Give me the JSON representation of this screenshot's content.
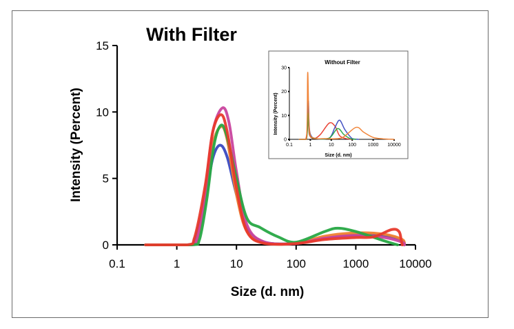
{
  "chart_data": [
    {
      "type": "line",
      "title": "With Filter",
      "xlabel": "Size (d. nm)",
      "ylabel": "Intensity (Percent)",
      "xscale": "log",
      "xlim": [
        0.1,
        10000
      ],
      "ylim": [
        0,
        15
      ],
      "xticks": [
        "0.1",
        "1",
        "10",
        "100",
        "1000",
        "10000"
      ],
      "yticks": [
        "0",
        "5",
        "10",
        "15"
      ],
      "legend": "none",
      "grid": false,
      "series": [
        {
          "color": "#3a49c0",
          "points": [
            [
              0.3,
              0
            ],
            [
              1.5,
              0
            ],
            [
              2,
              0.3
            ],
            [
              3,
              3.5
            ],
            [
              4,
              6.5
            ],
            [
              5.3,
              7.5
            ],
            [
              7,
              6.6
            ],
            [
              10,
              3.8
            ],
            [
              15,
              1.2
            ],
            [
              30,
              0.2
            ],
            [
              100,
              0.1
            ],
            [
              300,
              0.5
            ],
            [
              1000,
              0.75
            ],
            [
              3000,
              0.7
            ],
            [
              6000,
              0.3
            ],
            [
              6500,
              0
            ]
          ]
        },
        {
          "color": "#f08030",
          "points": [
            [
              0.3,
              0
            ],
            [
              1.6,
              0
            ],
            [
              2.2,
              0.4
            ],
            [
              3,
              3.5
            ],
            [
              4,
              7.5
            ],
            [
              5.5,
              8.9
            ],
            [
              7,
              7.9
            ],
            [
              10,
              3.8
            ],
            [
              15,
              1.0
            ],
            [
              30,
              0.15
            ],
            [
              100,
              0.1
            ],
            [
              300,
              0.65
            ],
            [
              1000,
              0.9
            ],
            [
              3000,
              0.8
            ],
            [
              6000,
              0.4
            ],
            [
              6500,
              0
            ]
          ]
        },
        {
          "color": "#c9459e",
          "points": [
            [
              0.3,
              0
            ],
            [
              1.6,
              0
            ],
            [
              2.2,
              0.5
            ],
            [
              3,
              4
            ],
            [
              4,
              8.5
            ],
            [
              5.8,
              10.3
            ],
            [
              7.5,
              9.2
            ],
            [
              10,
              5.5
            ],
            [
              15,
              1.5
            ],
            [
              30,
              0.2
            ],
            [
              100,
              0.1
            ],
            [
              300,
              0.5
            ],
            [
              1000,
              0.7
            ],
            [
              3000,
              0.55
            ],
            [
              6000,
              0.2
            ],
            [
              6500,
              0
            ]
          ]
        },
        {
          "color": "#27a845",
          "points": [
            [
              0.3,
              0
            ],
            [
              1.8,
              0
            ],
            [
              2.4,
              0.4
            ],
            [
              3.2,
              3.5
            ],
            [
              4.2,
              7.5
            ],
            [
              5.5,
              9.0
            ],
            [
              7,
              8.1
            ],
            [
              10,
              5.0
            ],
            [
              15,
              2.0
            ],
            [
              25,
              1.3
            ],
            [
              50,
              0.6
            ],
            [
              100,
              0.2
            ],
            [
              300,
              1.0
            ],
            [
              500,
              1.25
            ],
            [
              1000,
              1.0
            ],
            [
              3000,
              0.3
            ],
            [
              5000,
              0
            ]
          ]
        },
        {
          "color": "#e83a2c",
          "points": [
            [
              0.3,
              0
            ],
            [
              1.5,
              0
            ],
            [
              2,
              0.6
            ],
            [
              3,
              4.5
            ],
            [
              4,
              8.5
            ],
            [
              5.5,
              9.8
            ],
            [
              7,
              8.5
            ],
            [
              10,
              4.3
            ],
            [
              15,
              1.0
            ],
            [
              30,
              0.1
            ],
            [
              100,
              0.1
            ],
            [
              300,
              0.4
            ],
            [
              1000,
              0.55
            ],
            [
              2000,
              0.6
            ],
            [
              4000,
              1.15
            ],
            [
              5300,
              1.0
            ],
            [
              5800,
              0.3
            ],
            [
              6000,
              0
            ]
          ]
        }
      ]
    },
    {
      "type": "line",
      "title": "Without Filter",
      "xlabel": "Size (d. nm)",
      "ylabel": "Intensity (Percent)",
      "xscale": "log",
      "xlim": [
        0.1,
        10000
      ],
      "ylim": [
        0,
        30
      ],
      "xticks": [
        "0.1",
        "1",
        "10",
        "100",
        "1000",
        "10000"
      ],
      "yticks": [
        "0",
        "10",
        "20",
        "30"
      ],
      "legend": "none",
      "grid": false,
      "series": [
        {
          "color": "#e83a2c",
          "points": [
            [
              0.3,
              0
            ],
            [
              0.6,
              0
            ],
            [
              0.8,
              8
            ],
            [
              0.9,
              2
            ],
            [
              1.5,
              0.3
            ],
            [
              3,
              2
            ],
            [
              8,
              6.8
            ],
            [
              15,
              5.5
            ],
            [
              25,
              1.5
            ],
            [
              50,
              0.3
            ],
            [
              100,
              0
            ]
          ]
        },
        {
          "color": "#3a49c0",
          "points": [
            [
              0.3,
              0
            ],
            [
              0.65,
              0
            ],
            [
              0.8,
              16
            ],
            [
              0.95,
              3
            ],
            [
              2,
              0.2
            ],
            [
              8,
              0.5
            ],
            [
              15,
              5
            ],
            [
              25,
              8
            ],
            [
              45,
              4
            ],
            [
              100,
              0.3
            ],
            [
              200,
              0
            ]
          ]
        },
        {
          "color": "#27a845",
          "points": [
            [
              0.3,
              0
            ],
            [
              0.65,
              0
            ],
            [
              0.8,
              11
            ],
            [
              0.95,
              2
            ],
            [
              2,
              0.3
            ],
            [
              8,
              0.5
            ],
            [
              20,
              4.5
            ],
            [
              40,
              2
            ],
            [
              80,
              0.3
            ],
            [
              150,
              0
            ]
          ]
        },
        {
          "color": "#f08030",
          "points": [
            [
              0.3,
              0
            ],
            [
              0.65,
              0
            ],
            [
              0.75,
              28
            ],
            [
              0.9,
              4
            ],
            [
              1.5,
              0.5
            ],
            [
              5,
              0.3
            ],
            [
              30,
              0.5
            ],
            [
              150,
              5
            ],
            [
              350,
              3
            ],
            [
              1000,
              0.8
            ],
            [
              3000,
              0.2
            ],
            [
              10000,
              0
            ]
          ]
        }
      ]
    }
  ]
}
